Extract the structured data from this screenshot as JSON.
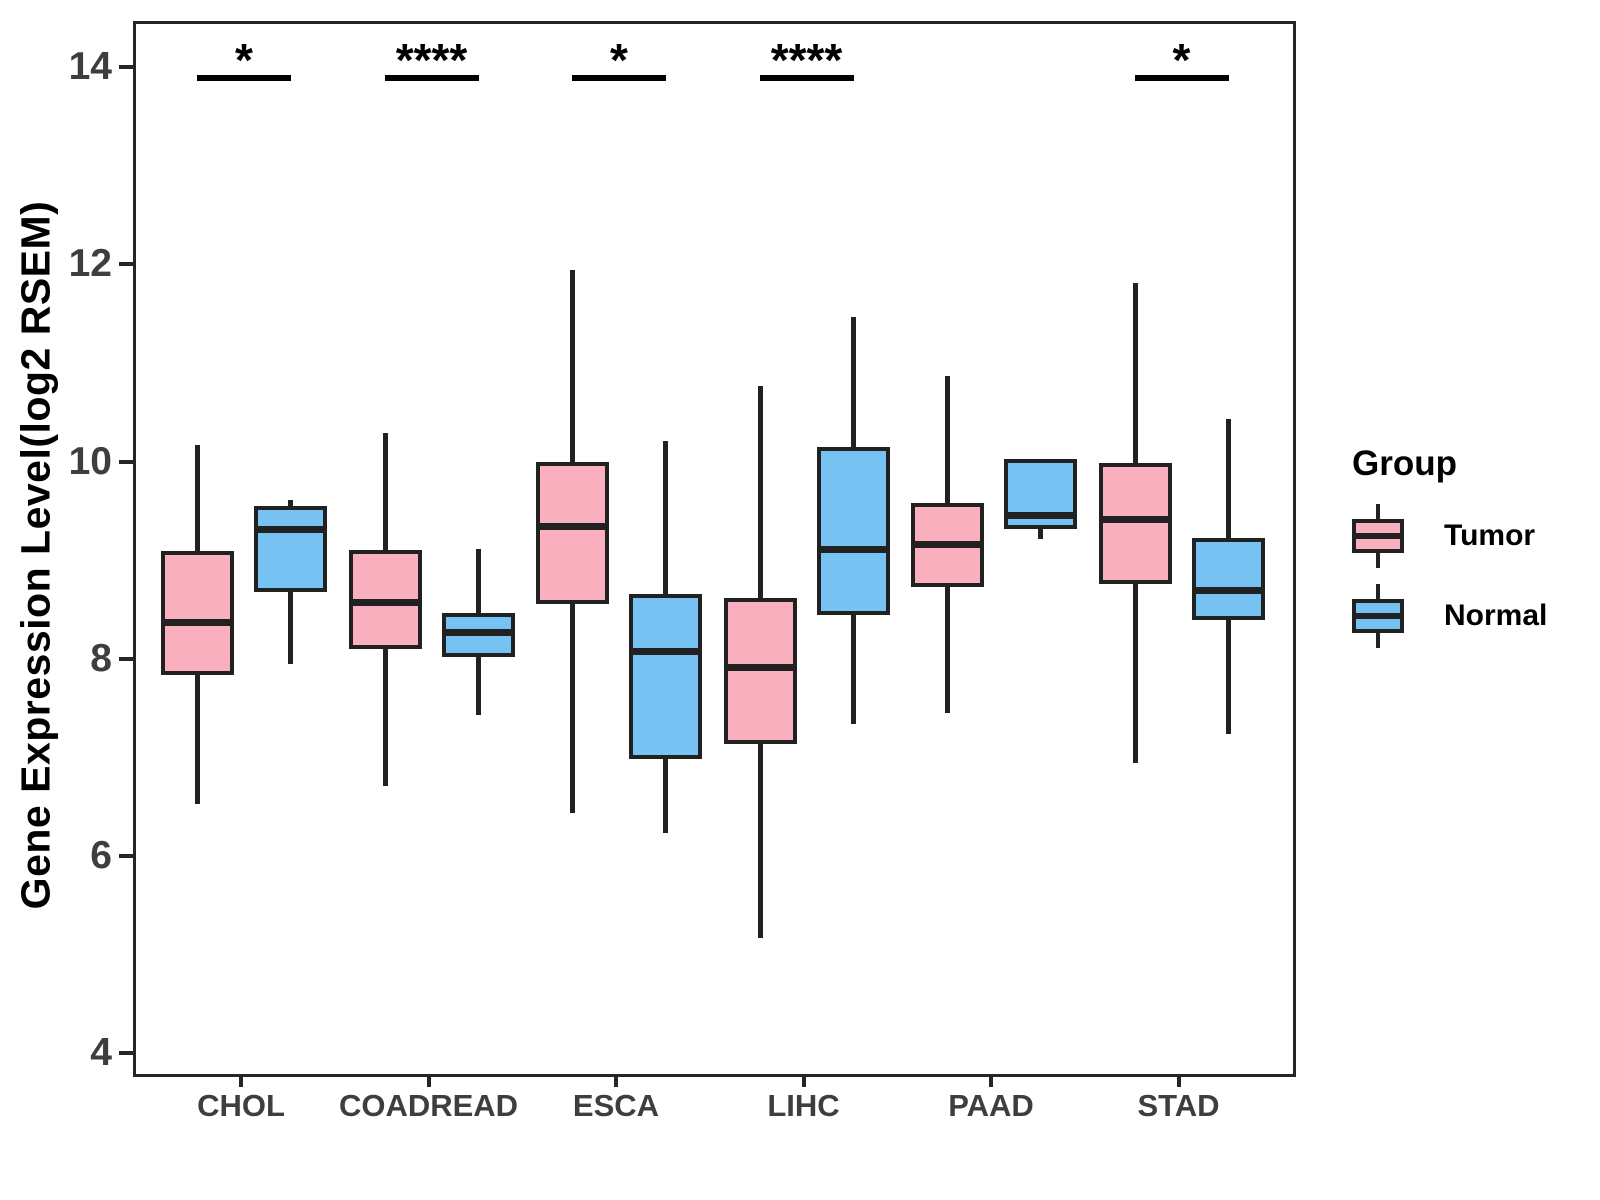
{
  "chart_data": {
    "type": "box",
    "ylabel": "Gene Expression Level(log2 RSEM)",
    "xlabel": "",
    "y_ticks": [
      4,
      6,
      8,
      10,
      12,
      14
    ],
    "ylim": [
      3.8,
      14.5
    ],
    "grid": "off",
    "categories": [
      "CHOL",
      "COADREAD",
      "ESCA",
      "LIHC",
      "PAAD",
      "STAD"
    ],
    "significance": [
      "*",
      "****",
      "*",
      "****",
      null,
      "*"
    ],
    "legend": {
      "title": "Group",
      "position": "right"
    },
    "series": [
      {
        "name": "Tumor",
        "color": "#F9AFBE",
        "boxes": [
          {
            "category": "CHOL",
            "min": 6.56,
            "q1": 7.87,
            "median": 8.4,
            "q3": 9.12,
            "max": 10.2
          },
          {
            "category": "COADREAD",
            "min": 6.74,
            "q1": 8.13,
            "median": 8.6,
            "q3": 9.13,
            "max": 10.32
          },
          {
            "category": "ESCA",
            "min": 6.47,
            "q1": 8.59,
            "median": 9.37,
            "q3": 10.03,
            "max": 11.97
          },
          {
            "category": "LIHC",
            "min": 5.2,
            "q1": 7.17,
            "median": 7.94,
            "q3": 8.65,
            "max": 10.8
          },
          {
            "category": "PAAD",
            "min": 7.48,
            "q1": 8.76,
            "median": 9.19,
            "q3": 9.61,
            "max": 10.9
          },
          {
            "category": "STAD",
            "min": 6.97,
            "q1": 8.79,
            "median": 9.44,
            "q3": 10.02,
            "max": 11.84
          }
        ]
      },
      {
        "name": "Normal",
        "color": "#76C2F3",
        "boxes": [
          {
            "category": "CHOL",
            "min": 7.98,
            "q1": 8.71,
            "median": 9.34,
            "q3": 9.58,
            "max": 9.64
          },
          {
            "category": "COADREAD",
            "min": 7.46,
            "q1": 8.05,
            "median": 8.3,
            "q3": 8.49,
            "max": 9.14
          },
          {
            "category": "ESCA",
            "min": 6.26,
            "q1": 7.01,
            "median": 8.1,
            "q3": 8.69,
            "max": 10.24
          },
          {
            "category": "LIHC",
            "min": 7.37,
            "q1": 8.47,
            "median": 9.14,
            "q3": 10.18,
            "max": 11.5
          },
          {
            "category": "PAAD",
            "min": 9.24,
            "q1": 9.35,
            "median": 9.48,
            "q3": 10.06,
            "max": 10.06
          },
          {
            "category": "STAD",
            "min": 7.27,
            "q1": 8.42,
            "median": 8.72,
            "q3": 9.25,
            "max": 10.46
          }
        ]
      }
    ]
  },
  "colors": {
    "tumor_fill": "#F9AFBE",
    "normal_fill": "#76C2F3",
    "box_stroke": "#212121",
    "axis_stroke": "#252525",
    "tick_label": "#3e3e3e",
    "background": "#ffffff"
  }
}
